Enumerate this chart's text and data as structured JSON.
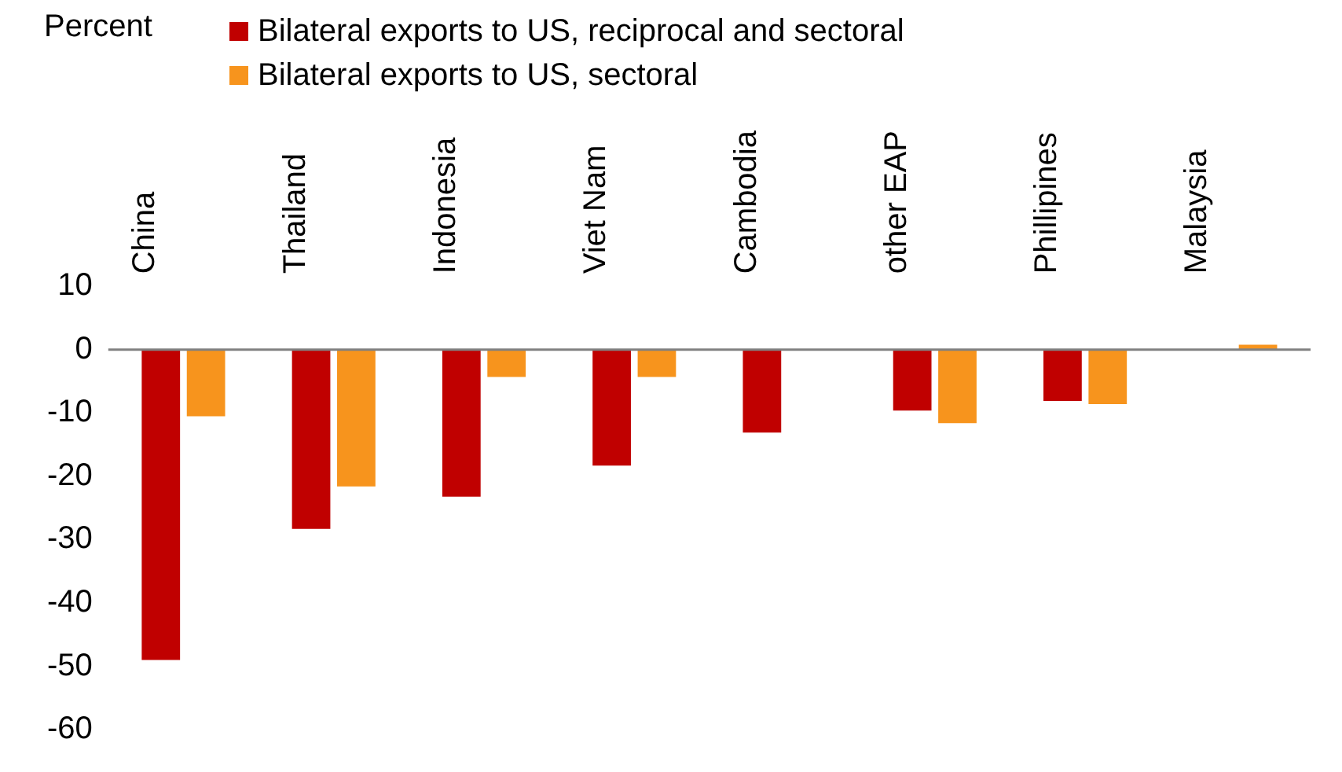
{
  "chart_data": {
    "type": "bar",
    "ylabel": "Percent",
    "legend": "top left",
    "grid": false,
    "categories": [
      "China",
      "Thailand",
      "Indonesia",
      "Viet Nam",
      "Cambodia",
      "other EAP",
      "Phillipines",
      "Malaysia"
    ],
    "series": [
      {
        "name": "Bilateral exports to US, reciprocal and sectoral",
        "color": "#c00000",
        "values": [
          -49,
          -28.3,
          -23.2,
          -18.3,
          -13.1,
          -9.6,
          -8.1,
          null
        ]
      },
      {
        "name": "Bilateral exports to US, sectoral",
        "color": "#f7941d",
        "values": [
          -10.5,
          -21.6,
          -4.3,
          -4.3,
          null,
          -11.6,
          -8.6,
          0.8
        ]
      }
    ],
    "ylim": [
      -60,
      10
    ],
    "yticks": [
      -60,
      -50,
      -40,
      -30,
      -20,
      -10,
      0,
      10
    ]
  }
}
